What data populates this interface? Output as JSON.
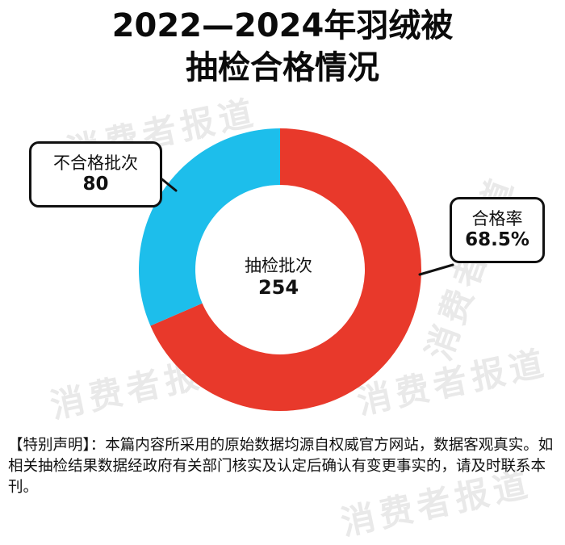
{
  "title_line1": "2022—2024年羽绒被",
  "title_line2": "抽检合格情况",
  "watermark": "消费者报道",
  "colors": {
    "qualified": "#E8392B",
    "unqualified": "#1DBEEB"
  },
  "chart_data": {
    "type": "pie",
    "variant": "donut",
    "slices": [
      {
        "category": "合格",
        "value": 174,
        "color": "#E8392B"
      },
      {
        "category": "不合格批次",
        "value": 80,
        "color": "#1DBEEB"
      }
    ],
    "center": {
      "label": "抽检批次",
      "value": "254"
    },
    "annotations": [
      {
        "label": "不合格批次",
        "value": "80"
      },
      {
        "label": "合格率",
        "value": "68.5%"
      }
    ]
  },
  "disclaimer": "【特别声明】：本篇内容所采用的原始数据均源自权威官方网站，数据客观真实。如相关抽检结果数据经政府有关部门核实及认定后确认有变更事实的，请及时联系本刊。"
}
